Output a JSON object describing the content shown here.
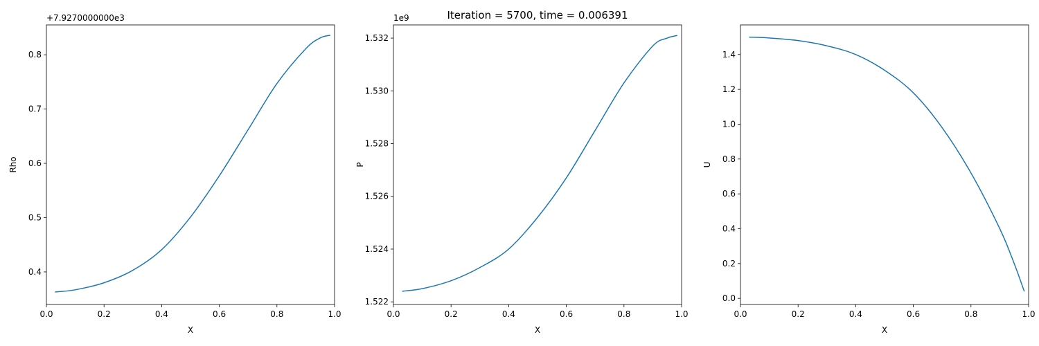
{
  "suptitle": "Iteration = 5700, time = 0.006391",
  "colors": {
    "line": "#1f77b4",
    "axes": "#000000",
    "background": "#ffffff"
  },
  "chart_data": [
    {
      "type": "line",
      "xlabel": "X",
      "ylabel": "Rho",
      "offset_text": "+7.9270000000e3",
      "xlim": [
        0.0,
        1.0
      ],
      "ylim": [
        0.34,
        0.855
      ],
      "xticks": [
        0.0,
        0.2,
        0.4,
        0.6,
        0.8,
        1.0
      ],
      "xtick_labels": [
        "0.0",
        "0.2",
        "0.4",
        "0.6",
        "0.8",
        "1.0"
      ],
      "yticks": [
        0.4,
        0.5,
        0.6,
        0.7,
        0.8
      ],
      "ytick_labels": [
        "0.4",
        "0.5",
        "0.6",
        "0.7",
        "0.8"
      ],
      "series": [
        {
          "x": [
            0.03,
            0.1,
            0.2,
            0.3,
            0.4,
            0.5,
            0.6,
            0.7,
            0.8,
            0.9,
            0.95,
            0.985
          ],
          "y": [
            0.363,
            0.367,
            0.38,
            0.403,
            0.441,
            0.501,
            0.577,
            0.662,
            0.747,
            0.811,
            0.831,
            0.836
          ]
        }
      ]
    },
    {
      "type": "line",
      "xlabel": "X",
      "ylabel": "P",
      "offset_text": "1e9",
      "xlim": [
        0.0,
        1.0
      ],
      "ylim": [
        1.5219,
        1.5325
      ],
      "xticks": [
        0.0,
        0.2,
        0.4,
        0.6,
        0.8,
        1.0
      ],
      "xtick_labels": [
        "0.0",
        "0.2",
        "0.4",
        "0.6",
        "0.8",
        "1.0"
      ],
      "yticks": [
        1.522,
        1.524,
        1.526,
        1.528,
        1.53,
        1.532
      ],
      "ytick_labels": [
        "1.522",
        "1.524",
        "1.526",
        "1.528",
        "1.530",
        "1.532"
      ],
      "series": [
        {
          "x": [
            0.03,
            0.1,
            0.2,
            0.3,
            0.4,
            0.5,
            0.6,
            0.7,
            0.8,
            0.9,
            0.95,
            0.985
          ],
          "y": [
            1.5224,
            1.5225,
            1.5228,
            1.5233,
            1.524,
            1.5252,
            1.5267,
            1.5285,
            1.5303,
            1.5317,
            1.532,
            1.5321
          ]
        }
      ]
    },
    {
      "type": "line",
      "xlabel": "X",
      "ylabel": "U",
      "offset_text": "",
      "xlim": [
        0.0,
        1.0
      ],
      "ylim": [
        -0.035,
        1.57
      ],
      "xticks": [
        0.0,
        0.2,
        0.4,
        0.6,
        0.8,
        1.0
      ],
      "xtick_labels": [
        "0.0",
        "0.2",
        "0.4",
        "0.6",
        "0.8",
        "1.0"
      ],
      "yticks": [
        0.0,
        0.2,
        0.4,
        0.6,
        0.8,
        1.0,
        1.2,
        1.4
      ],
      "ytick_labels": [
        "0.0",
        "0.2",
        "0.4",
        "0.6",
        "0.8",
        "1.0",
        "1.2",
        "1.4"
      ],
      "series": [
        {
          "x": [
            0.03,
            0.1,
            0.2,
            0.3,
            0.4,
            0.5,
            0.6,
            0.7,
            0.8,
            0.9,
            0.95,
            0.985
          ],
          "y": [
            1.5,
            1.495,
            1.48,
            1.45,
            1.4,
            1.31,
            1.18,
            0.98,
            0.72,
            0.4,
            0.2,
            0.04
          ]
        }
      ]
    }
  ]
}
